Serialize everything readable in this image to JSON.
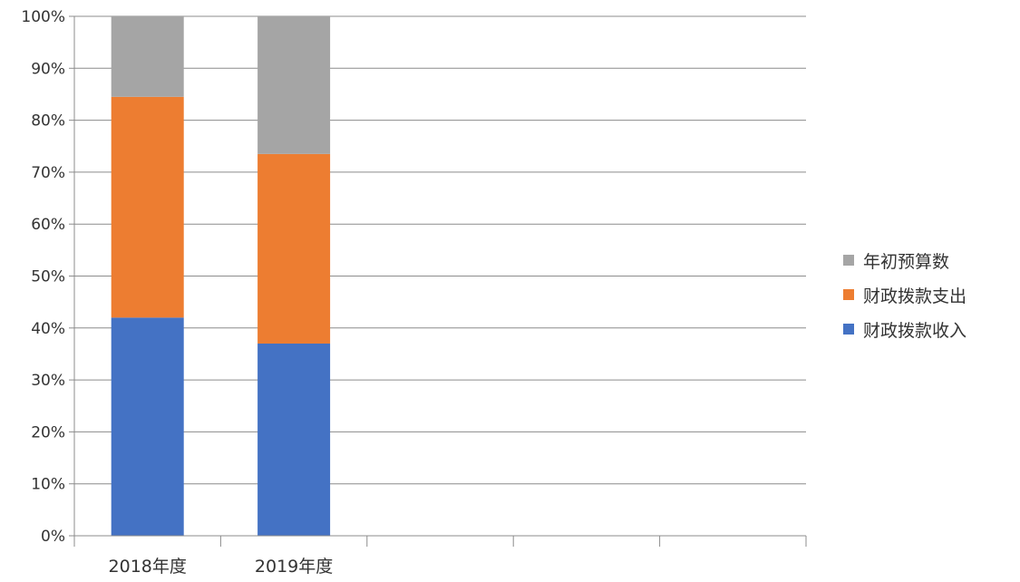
{
  "chart_data": {
    "type": "bar",
    "stacked": "percent",
    "categories": [
      "2018年度",
      "2019年度",
      "",
      "",
      ""
    ],
    "series": [
      {
        "name": "财政拨款收入",
        "color": "#4472C4",
        "values": [
          42,
          37,
          null,
          null,
          null
        ]
      },
      {
        "name": "财政拨款支出",
        "color": "#ED7D31",
        "values": [
          42.5,
          36.5,
          null,
          null,
          null
        ]
      },
      {
        "name": "年初预算数",
        "color": "#A5A5A5",
        "values": [
          15.5,
          26.5,
          null,
          null,
          null
        ]
      }
    ],
    "yticks": [
      "0%",
      "10%",
      "20%",
      "30%",
      "40%",
      "50%",
      "60%",
      "70%",
      "80%",
      "90%",
      "100%"
    ],
    "ylim": [
      0,
      100
    ],
    "grid": true,
    "legend_position": "right",
    "legend_order": [
      "年初预算数",
      "财政拨款支出",
      "财政拨款收入"
    ]
  }
}
